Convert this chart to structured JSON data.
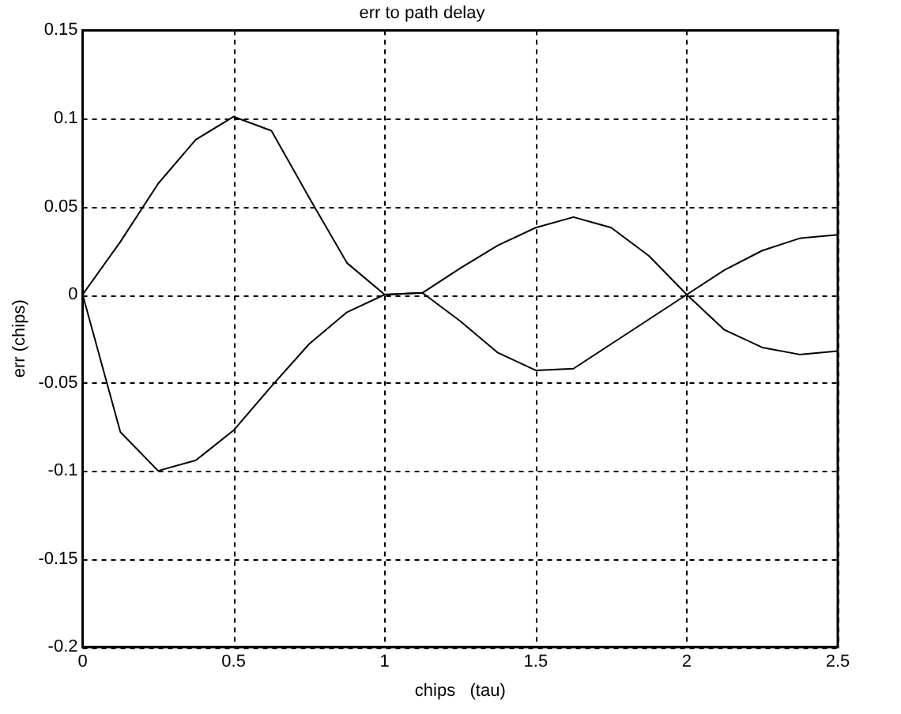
{
  "chart_data": {
    "type": "line",
    "title": "err to path delay",
    "xlabel": "chips   (tau)",
    "ylabel": "err (chips)",
    "x": [
      0,
      0.125,
      0.25,
      0.375,
      0.5,
      0.625,
      0.75,
      0.875,
      1,
      1.125,
      1.25,
      1.375,
      1.5,
      1.625,
      1.75,
      1.875,
      2,
      2.125,
      2.25,
      2.375,
      2.5
    ],
    "series": [
      {
        "color": "#000000",
        "values": [
          0,
          0.03,
          0.063,
          0.088,
          0.101,
          0.093,
          0.055,
          0.018,
          0,
          0.001,
          0.015,
          0.028,
          0.038,
          0.044,
          0.038,
          0.022,
          0,
          0.014,
          0.025,
          0.032,
          0.034
        ]
      },
      {
        "color": "#000000",
        "values": [
          0,
          -0.078,
          -0.1,
          -0.094,
          -0.077,
          -0.052,
          -0.028,
          -0.01,
          0,
          0.001,
          -0.015,
          -0.033,
          -0.043,
          -0.042,
          -0.028,
          -0.014,
          0,
          -0.02,
          -0.03,
          -0.034,
          -0.032
        ]
      }
    ],
    "xlim": [
      0,
      2.5
    ],
    "xticks": [
      0,
      0.5,
      1,
      1.5,
      2,
      2.5
    ],
    "ylim": [
      -0.2,
      0.15
    ],
    "yticks": [
      -0.2,
      -0.15,
      -0.1,
      -0.05,
      0,
      0.05,
      0.1,
      0.15
    ],
    "grid": true,
    "line_style": "solid",
    "marker": "none",
    "legend": false
  }
}
